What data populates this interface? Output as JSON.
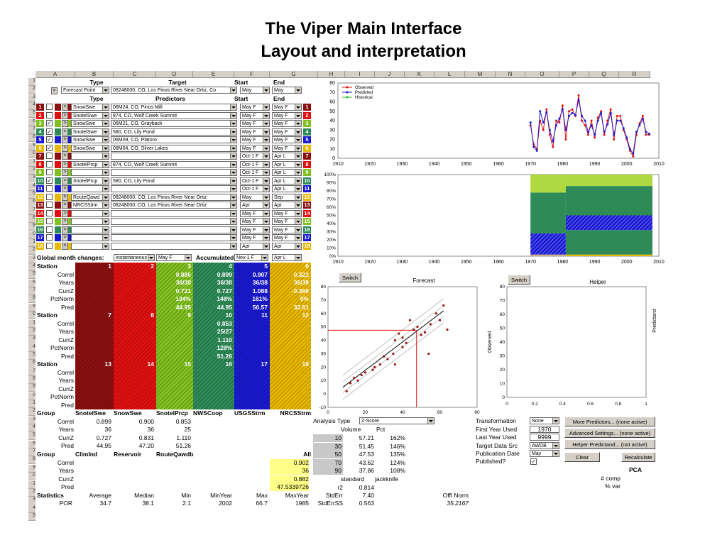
{
  "page": {
    "title_line1": "The Viper Main Interface",
    "title_line2": "Layout and interpretation"
  },
  "columns": [
    "A",
    "B",
    "C",
    "D",
    "E",
    "F",
    "G",
    "H",
    "I",
    "J",
    "K",
    "L",
    "M",
    "N",
    "O",
    "P",
    "Q",
    "R"
  ],
  "header": {
    "type": "Type",
    "target": "Target",
    "start": "Start",
    "end": "End",
    "predictors": "Predictors"
  },
  "top_row": {
    "type": "Forecast Point",
    "target": "08248000, CO, Los Pinos River Near Ortiz, Co",
    "start": "May",
    "end": "May",
    "nav": ">"
  },
  "predictors": [
    {
      "n": "1",
      "color": "#8b1010",
      "checked": false,
      "type": "SnowSwe",
      "pred": "06M24, CO, Pinos Mill",
      "start": "May F",
      "end": "May F"
    },
    {
      "n": "2",
      "color": "#e01010",
      "checked": false,
      "type": "SnotelSwe",
      "pred": "874, CO, Wolf Creek Summit",
      "start": "May F",
      "end": "May F"
    },
    {
      "n": "3",
      "color": "#80c020",
      "checked": true,
      "type": "SnowSwe",
      "pred": "06M21, CO, Grayback",
      "start": "May F",
      "end": "May F"
    },
    {
      "n": "4",
      "color": "#2e8b57",
      "checked": true,
      "type": "SnotelSwe",
      "pred": "580, CO, Lily Pond",
      "start": "May F",
      "end": "May F"
    },
    {
      "n": "5",
      "color": "#1a1ad0",
      "checked": true,
      "type": "SnowSwe",
      "pred": "06M09, CO, Platoro",
      "start": "May F",
      "end": "May F"
    },
    {
      "n": "6",
      "color": "#e8b800",
      "checked": true,
      "type": "SnowSwe",
      "pred": "06M04, CO, Silver Lakes",
      "start": "May F",
      "end": "May F"
    },
    {
      "n": "7",
      "color": "#8b1010",
      "checked": false,
      "type": "",
      "pred": "",
      "start": "Oct-1 F",
      "end": "Apr L"
    },
    {
      "n": "8",
      "color": "#e01010",
      "checked": false,
      "type": "SnotelPrcp",
      "pred": "874, CO, Wolf Creek Summit",
      "start": "Oct-1 F",
      "end": "Apr L"
    },
    {
      "n": "9",
      "color": "#80c020",
      "checked": false,
      "type": "",
      "pred": "",
      "start": "Oct-1 F",
      "end": "Apr L"
    },
    {
      "n": "10",
      "color": "#2e8b57",
      "checked": true,
      "type": "SnotelPrcp",
      "pred": "580, CO, Lily Pond",
      "start": "Oct-1 F",
      "end": "Apr L"
    },
    {
      "n": "11",
      "color": "#1a1ad0",
      "checked": false,
      "type": "",
      "pred": "",
      "start": "Oct-1 F",
      "end": "Apr L"
    },
    {
      "n": "12",
      "color": "#e8b800",
      "checked": false,
      "type": "RouteQawd",
      "pred": "08248000, CO, Los Pinos River Near Ortiz",
      "start": "May",
      "end": "Sep"
    },
    {
      "n": "13",
      "color": "#8b1010",
      "checked": false,
      "type": "NRCSStrm",
      "pred": "08248000, CO, Los Pinos River Near Ortiz",
      "start": "Apr",
      "end": "Apr"
    },
    {
      "n": "14",
      "color": "#e01010",
      "checked": false,
      "type": "",
      "pred": "",
      "start": "May F",
      "end": "May F"
    },
    {
      "n": "15",
      "color": "#80c020",
      "checked": false,
      "type": "",
      "pred": "",
      "start": "May F",
      "end": "May F"
    },
    {
      "n": "16",
      "color": "#2e8b57",
      "checked": false,
      "type": "",
      "pred": "",
      "start": "May F",
      "end": "May F"
    },
    {
      "n": "17",
      "color": "#1a1ad0",
      "checked": false,
      "type": "",
      "pred": "",
      "start": "May F",
      "end": "May F"
    },
    {
      "n": "18",
      "color": "#e8b800",
      "checked": false,
      "type": "",
      "pred": "",
      "start": "Apr",
      "end": "Apr"
    }
  ],
  "global": {
    "label": "Global month changes:",
    "instant": "Instantaneous",
    "instant_val": "May F",
    "accum": "Accumulated",
    "accum_start": "Nov-1 F",
    "accum_end": "Apr L"
  },
  "stations": {
    "row_labels": [
      "Station",
      "Correl",
      "Years",
      "CurrZ",
      "PctNorm",
      "Pred"
    ],
    "block1": [
      {
        "num": "1",
        "color": "#8b1010",
        "vals": [
          "",
          "",
          "",
          "",
          ""
        ]
      },
      {
        "num": "2",
        "color": "#e01010",
        "vals": [
          "",
          "",
          "",
          "",
          ""
        ]
      },
      {
        "num": "3",
        "color": "#80c020",
        "vals": [
          "0.886",
          "36/38",
          "0.721",
          "134%",
          "44.95"
        ]
      },
      {
        "num": "4",
        "color": "#2e8b57",
        "vals": [
          "0.899",
          "36/38",
          "0.727",
          "148%",
          "44.95"
        ]
      },
      {
        "num": "5",
        "color": "#1a1ad0",
        "vals": [
          "0.907",
          "36/38",
          "1.088",
          "161%",
          "50.57"
        ]
      },
      {
        "num": "6",
        "color": "#e8b800",
        "vals": [
          "0.322",
          "36/38",
          "-0.368",
          "0%",
          "32.61"
        ]
      }
    ],
    "block2": [
      {
        "num": "7",
        "color": "#8b1010",
        "vals": [
          "",
          "",
          "",
          "",
          ""
        ]
      },
      {
        "num": "8",
        "color": "#e01010",
        "vals": [
          "",
          "",
          "",
          "",
          ""
        ]
      },
      {
        "num": "9",
        "color": "#80c020",
        "vals": [
          "",
          "",
          "",
          "",
          ""
        ]
      },
      {
        "num": "10",
        "color": "#2e8b57",
        "vals": [
          "0.853",
          "25/27",
          "1.110",
          "128%",
          "51.26"
        ]
      },
      {
        "num": "11",
        "color": "#1a1ad0",
        "vals": [
          "",
          "",
          "",
          "",
          ""
        ]
      },
      {
        "num": "12",
        "color": "#e8b800",
        "vals": [
          "",
          "",
          "",
          "",
          ""
        ]
      }
    ],
    "block3": [
      {
        "num": "13",
        "color": "#8b1010"
      },
      {
        "num": "14",
        "color": "#e01010"
      },
      {
        "num": "15",
        "color": "#80c020"
      },
      {
        "num": "16",
        "color": "#2e8b57"
      },
      {
        "num": "17",
        "color": "#1a1ad0"
      },
      {
        "num": "18",
        "color": "#e8b800"
      }
    ]
  },
  "groups1": {
    "header": [
      "Group",
      "SnotelSwe",
      "SnowSwe",
      "SnotelPrcp",
      "NWSCoop",
      "USGSStrm",
      "NRCSStrm"
    ],
    "rows": [
      [
        "Correl",
        "0.899",
        "0.900",
        "0.853",
        "",
        "",
        ""
      ],
      [
        "Years",
        "36",
        "36",
        "25",
        "",
        "",
        ""
      ],
      [
        "CurrZ",
        "0.727",
        "0.831",
        "1.110",
        "",
        "",
        ""
      ],
      [
        "Pred",
        "44.95",
        "47.20",
        "51.26",
        "",
        "",
        ""
      ]
    ]
  },
  "groups2": {
    "header": [
      "Group",
      "ClimInd",
      "Reservoir",
      "RouteQawdb",
      "",
      "",
      "All"
    ],
    "rows": [
      [
        "Correl",
        "",
        "",
        "",
        "",
        "",
        "0.902"
      ],
      [
        "Years",
        "",
        "",
        "",
        "",
        "",
        "36"
      ],
      [
        "CurrZ",
        "",
        "",
        "",
        "",
        "",
        "0.882"
      ],
      [
        "Pred",
        "",
        "",
        "",
        "",
        "",
        "47.5339726"
      ]
    ]
  },
  "stats": {
    "header": [
      "Statistics",
      "Average",
      "Median",
      "Min",
      "MinYear",
      "Max",
      "MaxYear"
    ],
    "row": [
      "POR",
      "34.7",
      "38.1",
      "2.1",
      "2002",
      "66.7",
      "1985"
    ]
  },
  "analysis": {
    "label": "Analysis Type",
    "value": "Z-Score",
    "vol": "Volume",
    "pct": "Pct",
    "rows": [
      [
        "10",
        "57.21",
        "162%"
      ],
      [
        "30",
        "51.45",
        "146%"
      ],
      [
        "50",
        "47.53",
        "135%"
      ],
      [
        "70",
        "43.62",
        "124%"
      ],
      [
        "90",
        "37.86",
        "108%"
      ]
    ],
    "std_label": "standard",
    "jack_label": "jackknife",
    "r2_label": "r2",
    "r2": "0.814",
    "stderr_label": "StdErr",
    "stderr": "7.40",
    "stderrss_label": "StdErrSS",
    "stderrss": "0.563",
    "offl_label": "Offl Norm",
    "offl": "35.2167"
  },
  "settings": {
    "transformation": "Transformation",
    "transformation_val": "None",
    "first_year": "First Year Used",
    "first_year_val": "1970",
    "last_year": "Last Year Used",
    "last_year_val": "9999",
    "target_src": "Target Data Src",
    "target_src_val": "AWDB",
    "pub_date": "Publication Date",
    "pub_date_val": "May",
    "published": "Published?"
  },
  "buttons": {
    "more": "More Predictors... (none active)",
    "advanced": "Advanced Settings... (none active)",
    "helper": "Helper Predictand... (not active)",
    "clear": "Clear",
    "recalc": "Recalculate",
    "switch": "Switch"
  },
  "pca": {
    "title": "PCA",
    "comp": "# comp",
    "var": "% var"
  },
  "chart_data": [
    {
      "type": "line",
      "series": [
        {
          "name": "Observed",
          "color": "#e01010"
        },
        {
          "name": "Predicted",
          "color": "#1a1ad0"
        },
        {
          "name": "Historical",
          "color": "#20c020"
        }
      ],
      "xlim": [
        1910,
        2010
      ],
      "ylim": [
        0,
        80
      ],
      "x_ticks": [
        "1910",
        "1920",
        "1930",
        "1940",
        "1950",
        "1960",
        "1970",
        "1980",
        "1990",
        "2000",
        "2010"
      ],
      "y_ticks": [
        "0",
        "10",
        "20",
        "30",
        "40",
        "50",
        "60",
        "70",
        "80"
      ],
      "x": [
        1970,
        1971,
        1972,
        1973,
        1974,
        1975,
        1976,
        1977,
        1978,
        1979,
        1980,
        1981,
        1982,
        1983,
        1984,
        1985,
        1986,
        1987,
        1988,
        1989,
        1990,
        1991,
        1992,
        1993,
        1994,
        1995,
        1996,
        1997,
        1998,
        1999,
        2000,
        2001,
        2002,
        2003,
        2004,
        2005,
        2006,
        2007
      ],
      "observed": [
        35,
        15,
        10,
        40,
        30,
        52,
        25,
        12,
        40,
        38,
        56,
        20,
        50,
        52,
        45,
        67,
        40,
        35,
        25,
        40,
        22,
        43,
        50,
        25,
        40,
        52,
        20,
        45,
        45,
        30,
        20,
        8,
        2,
        25,
        37,
        45,
        25,
        25
      ],
      "predicted": [
        38,
        12,
        8,
        50,
        38,
        49,
        30,
        18,
        35,
        42,
        52,
        30,
        45,
        48,
        46,
        62,
        45,
        40,
        28,
        35,
        25,
        40,
        48,
        28,
        36,
        48,
        25,
        40,
        40,
        32,
        22,
        10,
        5,
        28,
        35,
        42,
        28,
        26
      ]
    },
    {
      "type": "area",
      "ylim": [
        0,
        100
      ],
      "y_ticks": [
        "0%",
        "10%",
        "20%",
        "30%",
        "40%",
        "50%",
        "60%",
        "70%",
        "80%",
        "90%",
        "100%"
      ],
      "x_ticks": [
        "1910",
        "1920",
        "1930",
        "1940",
        "1950",
        "1960",
        "1970",
        "1980",
        "1990",
        "2000",
        "2010"
      ]
    },
    {
      "type": "scatter",
      "title": "Forecast",
      "xlim": [
        0,
        80
      ],
      "ylim": [
        -10,
        80
      ],
      "x_ticks": [
        "0",
        "20",
        "40",
        "60",
        "80"
      ],
      "y_ticks": [
        "-10",
        "0",
        "10",
        "20",
        "30",
        "40",
        "50",
        "60",
        "70",
        "80"
      ],
      "points": [
        [
          10,
          2
        ],
        [
          12,
          8
        ],
        [
          14,
          12
        ],
        [
          16,
          10
        ],
        [
          18,
          14
        ],
        [
          20,
          16
        ],
        [
          24,
          18
        ],
        [
          28,
          22
        ],
        [
          30,
          28
        ],
        [
          32,
          26
        ],
        [
          35,
          30
        ],
        [
          36,
          40
        ],
        [
          38,
          45
        ],
        [
          40,
          35
        ],
        [
          40,
          42
        ],
        [
          42,
          38
        ],
        [
          44,
          55
        ],
        [
          46,
          48
        ],
        [
          48,
          50
        ],
        [
          50,
          44
        ],
        [
          52,
          46
        ],
        [
          55,
          52
        ],
        [
          58,
          60
        ],
        [
          60,
          55
        ],
        [
          62,
          66
        ],
        [
          64,
          48
        ],
        [
          54,
          30
        ],
        [
          36,
          22
        ],
        [
          25,
          20
        ]
      ],
      "fit": [
        [
          8,
          5
        ],
        [
          62,
          62
        ]
      ]
    },
    {
      "type": "scatter",
      "title": "Helper",
      "xlim": [
        0,
        1
      ],
      "ylim": [
        0,
        80
      ],
      "x_ticks": [
        "0",
        "0.2",
        "0.4",
        "0.6",
        "0.8",
        "1"
      ],
      "y_ticks": [
        "0",
        "10",
        "20",
        "30",
        "40",
        "50",
        "60",
        "70",
        "80"
      ],
      "ylabel": "Observed",
      "y2label": "Predictand"
    }
  ]
}
